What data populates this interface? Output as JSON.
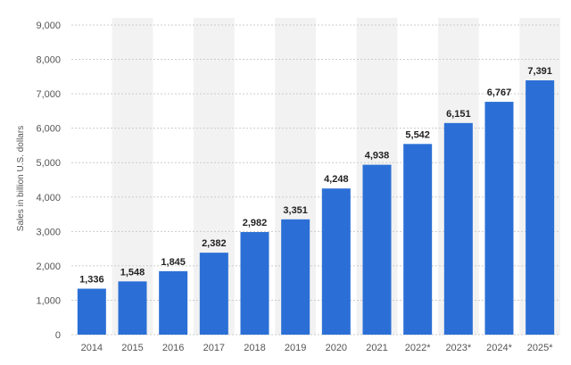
{
  "chart_data": {
    "type": "bar",
    "title": "",
    "xlabel": "",
    "ylabel": "Sales in billion U.S. dollars",
    "categories": [
      "2014",
      "2015",
      "2016",
      "2017",
      "2018",
      "2019",
      "2020",
      "2021",
      "2022*",
      "2023*",
      "2024*",
      "2025*"
    ],
    "values": [
      1336,
      1548,
      1845,
      2382,
      2982,
      3351,
      4248,
      4938,
      5542,
      6151,
      6767,
      7391
    ],
    "value_labels": [
      "1,336",
      "1,548",
      "1,845",
      "2,382",
      "2,982",
      "3,351",
      "4,248",
      "4,938",
      "5,542",
      "6,151",
      "6,767",
      "7,391"
    ],
    "ylim": [
      0,
      9000
    ],
    "yticks": [
      0,
      1000,
      2000,
      3000,
      4000,
      5000,
      6000,
      7000,
      8000,
      9000
    ],
    "ytick_labels": [
      "0",
      "1,000",
      "2,000",
      "3,000",
      "4,000",
      "5,000",
      "6,000",
      "7,000",
      "8,000",
      "9,000"
    ],
    "grid": true,
    "bar_color": "#2b6fd6",
    "alt_band_color": "#f2f2f2",
    "grid_color": "#cccccc"
  }
}
